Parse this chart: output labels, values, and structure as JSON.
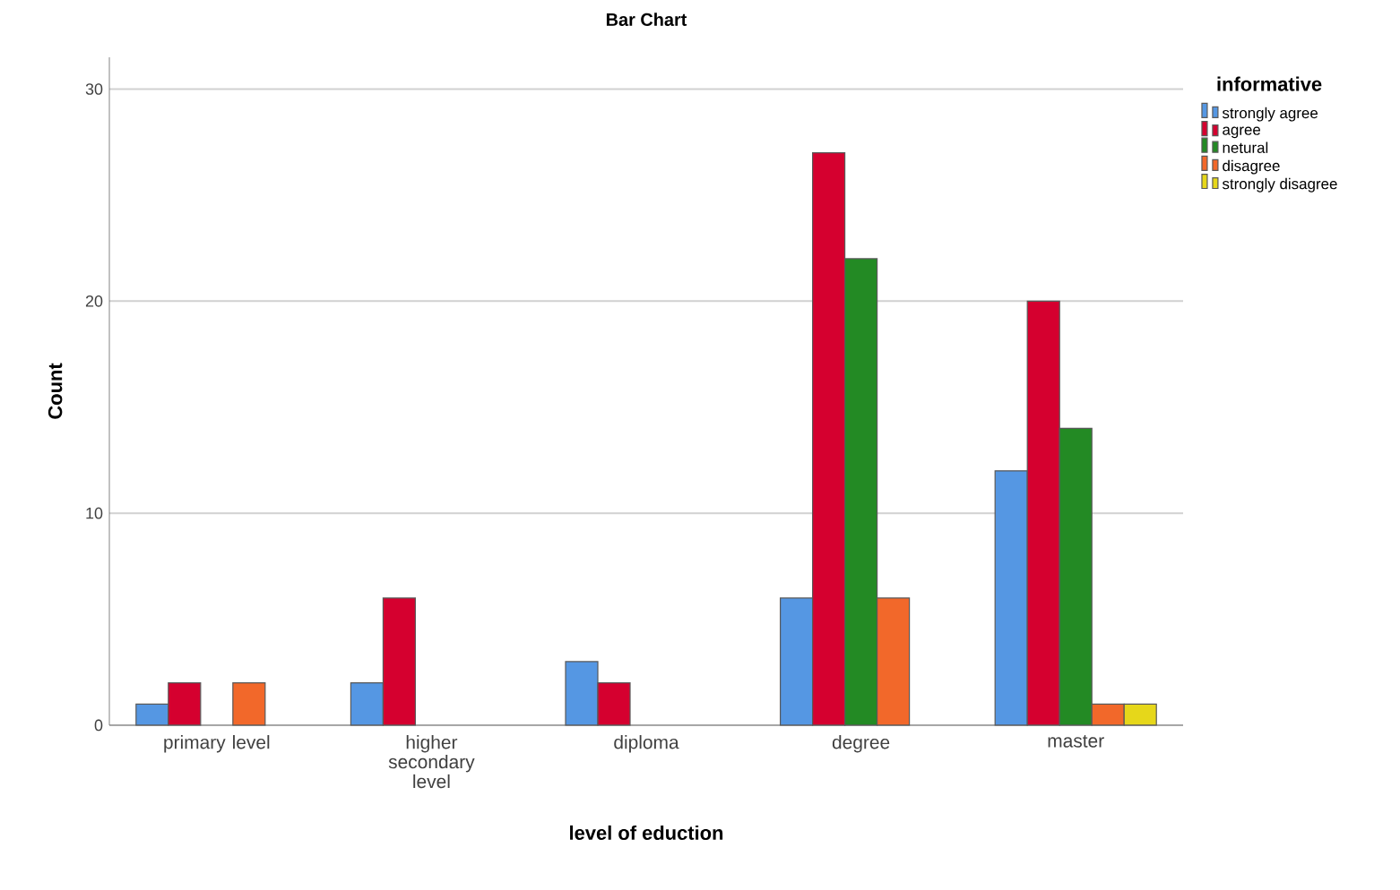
{
  "chart_data": {
    "type": "bar",
    "title": "Bar Chart",
    "xlabel": "level of eduction",
    "ylabel": "Count",
    "legend_title": "informative",
    "categories": [
      "primary level",
      "higher secondary level",
      "diploma",
      "degree",
      "master"
    ],
    "series": [
      {
        "name": "strongly agree",
        "color": "#5597e3",
        "values": [
          1,
          2,
          3,
          6,
          12
        ]
      },
      {
        "name": "agree",
        "color": "#d5002f",
        "values": [
          2,
          6,
          2,
          27,
          20
        ]
      },
      {
        "name": "netural",
        "color": "#238a24",
        "values": [
          null,
          null,
          null,
          22,
          14
        ]
      },
      {
        "name": "disagree",
        "color": "#f2682a",
        "values": [
          2,
          null,
          null,
          6,
          1
        ]
      },
      {
        "name": "strongly disagree",
        "color": "#e6d71a",
        "values": [
          null,
          null,
          null,
          null,
          1
        ]
      }
    ],
    "ylim": [
      0,
      31.5
    ],
    "yticks": [
      0,
      10,
      20,
      30
    ],
    "grid": "y",
    "legend": "top right"
  }
}
